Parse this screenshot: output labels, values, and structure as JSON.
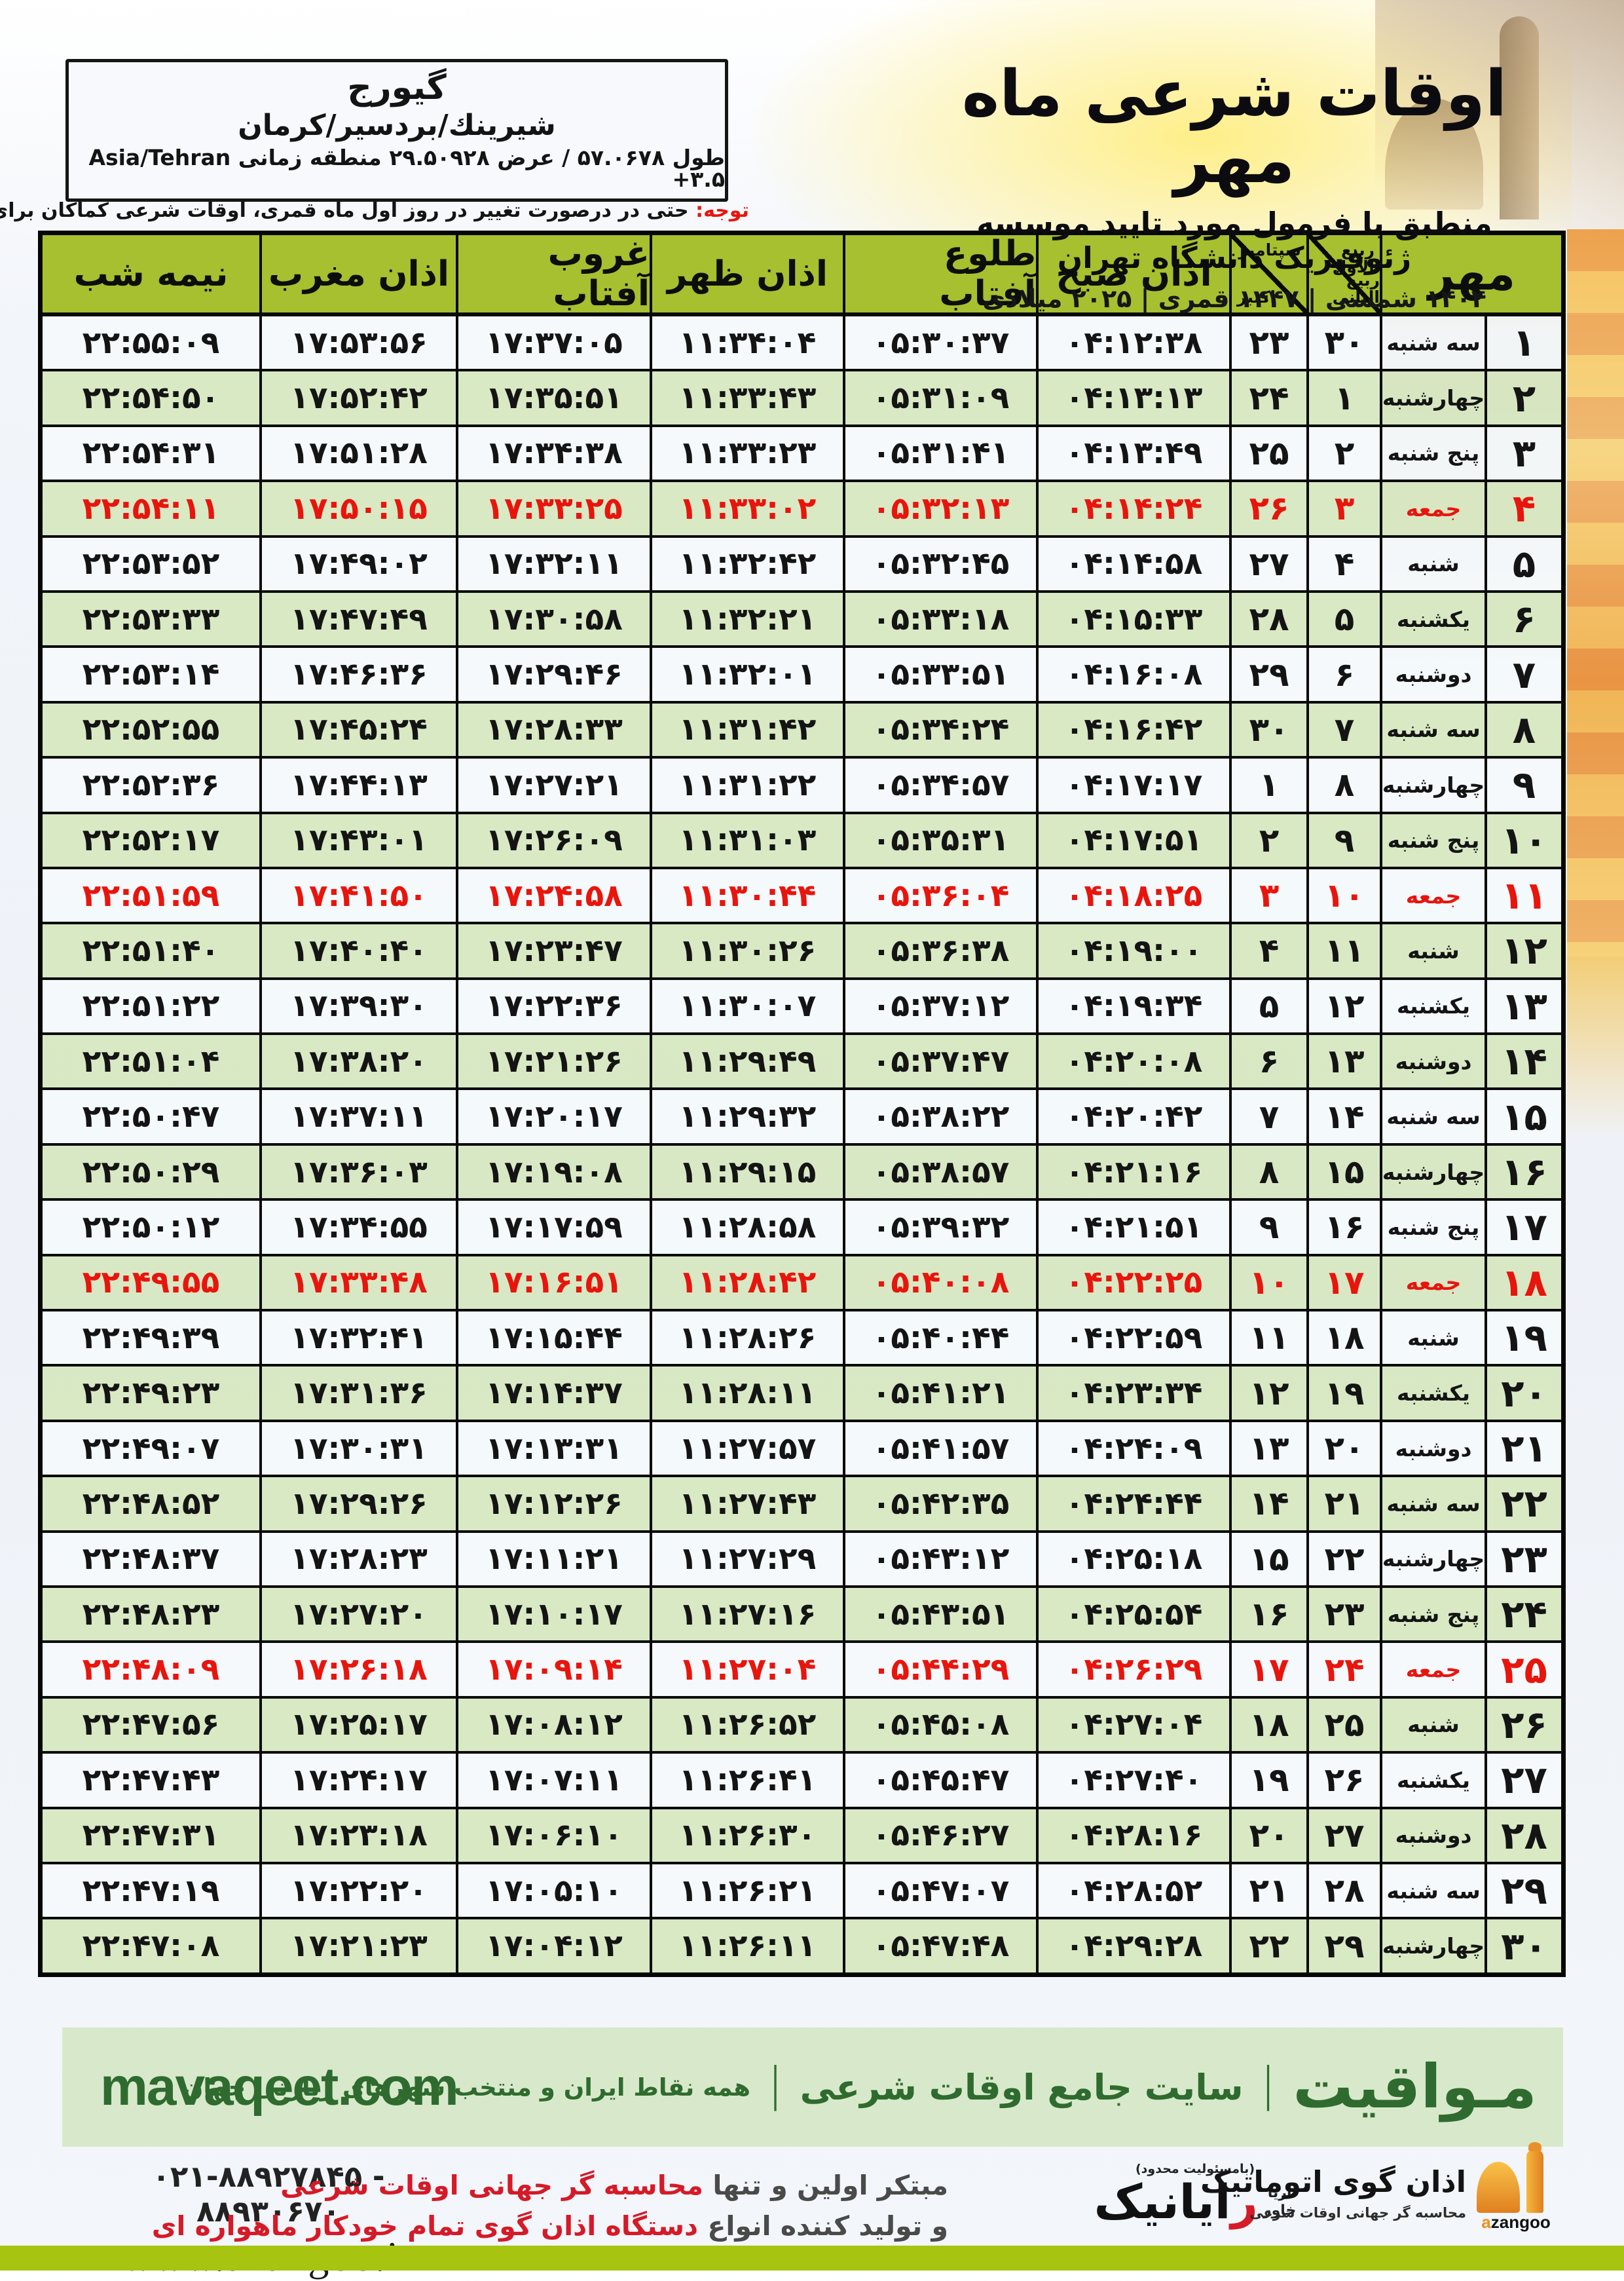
{
  "colors": {
    "header_green": "#a6c02f",
    "row_green": "#d6e7c0",
    "friday_red": "#e8150d",
    "footer_bg": "#d8e9cb",
    "footer_text": "#2f6b2f",
    "lime_bar": "#a6c410",
    "accent_orange": "#f0a93c"
  },
  "location_box": {
    "name": "گیورج",
    "region": "شیرینك/بردسیر/کرمان",
    "coords_fa": "طول ۵۷.۰۶۷۸ / عرض ۲۹.۵۰۹۲۸ منطقه زمانی",
    "timezone": "Asia/Tehran +۳.۵"
  },
  "title": {
    "main": "اوقات شرعی ماه مهر",
    "subtitle": "منطبق با فرمول مورد تایید موسسه ژئوفیزیک دانشگاه تهران",
    "era": "۱۴۰۴ شمسی | ۱۴۴۷ قمری | ۲۰۲۵ میلادی"
  },
  "note": {
    "label": "توجه:",
    "text": " حتی در درصورت تغییر در روز اول ماه قمری، اوقات شرعی کماکان برای روزهای شمسی و میلادی معتبر است."
  },
  "table": {
    "month": "مهر",
    "lunar_top": "ربیع الاول",
    "lunar_bottom": "ربیع الثانی",
    "greg_top": "سپتامبر",
    "greg_bottom": "اکتبر",
    "headers": {
      "fajr": "اذان صبح",
      "sunrise": "طلوع آفتاب",
      "dhuhr": "اذان ظهر",
      "sunset": "غروب آفتاب",
      "maghrib": "اذان مغرب",
      "midnight": "نیمه شب"
    },
    "rows": [
      {
        "d": "۱",
        "w": "سه شنبه",
        "l": "۳۰",
        "g": "۲۳",
        "fajr": "۰۴:۱۲:۳۸",
        "rise": "۰۵:۳۰:۳۷",
        "noon": "۱۱:۳۴:۰۴",
        "set": "۱۷:۳۷:۰۵",
        "mag": "۱۷:۵۳:۵۶",
        "mid": "۲۲:۵۵:۰۹",
        "fri": false
      },
      {
        "d": "۲",
        "w": "چهارشنبه",
        "l": "۱",
        "g": "۲۴",
        "fajr": "۰۴:۱۳:۱۳",
        "rise": "۰۵:۳۱:۰۹",
        "noon": "۱۱:۳۳:۴۳",
        "set": "۱۷:۳۵:۵۱",
        "mag": "۱۷:۵۲:۴۲",
        "mid": "۲۲:۵۴:۵۰",
        "fri": false
      },
      {
        "d": "۳",
        "w": "پنج شنبه",
        "l": "۲",
        "g": "۲۵",
        "fajr": "۰۴:۱۳:۴۹",
        "rise": "۰۵:۳۱:۴۱",
        "noon": "۱۱:۳۳:۲۳",
        "set": "۱۷:۳۴:۳۸",
        "mag": "۱۷:۵۱:۲۸",
        "mid": "۲۲:۵۴:۳۱",
        "fri": false
      },
      {
        "d": "۴",
        "w": "جمعه",
        "l": "۳",
        "g": "۲۶",
        "fajr": "۰۴:۱۴:۲۴",
        "rise": "۰۵:۳۲:۱۳",
        "noon": "۱۱:۳۳:۰۲",
        "set": "۱۷:۳۳:۲۵",
        "mag": "۱۷:۵۰:۱۵",
        "mid": "۲۲:۵۴:۱۱",
        "fri": true
      },
      {
        "d": "۵",
        "w": "شنبه",
        "l": "۴",
        "g": "۲۷",
        "fajr": "۰۴:۱۴:۵۸",
        "rise": "۰۵:۳۲:۴۵",
        "noon": "۱۱:۳۲:۴۲",
        "set": "۱۷:۳۲:۱۱",
        "mag": "۱۷:۴۹:۰۲",
        "mid": "۲۲:۵۳:۵۲",
        "fri": false
      },
      {
        "d": "۶",
        "w": "یکشنبه",
        "l": "۵",
        "g": "۲۸",
        "fajr": "۰۴:۱۵:۳۳",
        "rise": "۰۵:۳۳:۱۸",
        "noon": "۱۱:۳۲:۲۱",
        "set": "۱۷:۳۰:۵۸",
        "mag": "۱۷:۴۷:۴۹",
        "mid": "۲۲:۵۳:۳۳",
        "fri": false
      },
      {
        "d": "۷",
        "w": "دوشنبه",
        "l": "۶",
        "g": "۲۹",
        "fajr": "۰۴:۱۶:۰۸",
        "rise": "۰۵:۳۳:۵۱",
        "noon": "۱۱:۳۲:۰۱",
        "set": "۱۷:۲۹:۴۶",
        "mag": "۱۷:۴۶:۳۶",
        "mid": "۲۲:۵۳:۱۴",
        "fri": false
      },
      {
        "d": "۸",
        "w": "سه شنبه",
        "l": "۷",
        "g": "۳۰",
        "fajr": "۰۴:۱۶:۴۲",
        "rise": "۰۵:۳۴:۲۴",
        "noon": "۱۱:۳۱:۴۲",
        "set": "۱۷:۲۸:۳۳",
        "mag": "۱۷:۴۵:۲۴",
        "mid": "۲۲:۵۲:۵۵",
        "fri": false
      },
      {
        "d": "۹",
        "w": "چهارشنبه",
        "l": "۸",
        "g": "۱",
        "fajr": "۰۴:۱۷:۱۷",
        "rise": "۰۵:۳۴:۵۷",
        "noon": "۱۱:۳۱:۲۲",
        "set": "۱۷:۲۷:۲۱",
        "mag": "۱۷:۴۴:۱۳",
        "mid": "۲۲:۵۲:۳۶",
        "fri": false
      },
      {
        "d": "۱۰",
        "w": "پنج شنبه",
        "l": "۹",
        "g": "۲",
        "fajr": "۰۴:۱۷:۵۱",
        "rise": "۰۵:۳۵:۳۱",
        "noon": "۱۱:۳۱:۰۳",
        "set": "۱۷:۲۶:۰۹",
        "mag": "۱۷:۴۳:۰۱",
        "mid": "۲۲:۵۲:۱۷",
        "fri": false
      },
      {
        "d": "۱۱",
        "w": "جمعه",
        "l": "۱۰",
        "g": "۳",
        "fajr": "۰۴:۱۸:۲۵",
        "rise": "۰۵:۳۶:۰۴",
        "noon": "۱۱:۳۰:۴۴",
        "set": "۱۷:۲۴:۵۸",
        "mag": "۱۷:۴۱:۵۰",
        "mid": "۲۲:۵۱:۵۹",
        "fri": true
      },
      {
        "d": "۱۲",
        "w": "شنبه",
        "l": "۱۱",
        "g": "۴",
        "fajr": "۰۴:۱۹:۰۰",
        "rise": "۰۵:۳۶:۳۸",
        "noon": "۱۱:۳۰:۲۶",
        "set": "۱۷:۲۳:۴۷",
        "mag": "۱۷:۴۰:۴۰",
        "mid": "۲۲:۵۱:۴۰",
        "fri": false
      },
      {
        "d": "۱۳",
        "w": "یکشنبه",
        "l": "۱۲",
        "g": "۵",
        "fajr": "۰۴:۱۹:۳۴",
        "rise": "۰۵:۳۷:۱۲",
        "noon": "۱۱:۳۰:۰۷",
        "set": "۱۷:۲۲:۳۶",
        "mag": "۱۷:۳۹:۳۰",
        "mid": "۲۲:۵۱:۲۲",
        "fri": false
      },
      {
        "d": "۱۴",
        "w": "دوشنبه",
        "l": "۱۳",
        "g": "۶",
        "fajr": "۰۴:۲۰:۰۸",
        "rise": "۰۵:۳۷:۴۷",
        "noon": "۱۱:۲۹:۴۹",
        "set": "۱۷:۲۱:۲۶",
        "mag": "۱۷:۳۸:۲۰",
        "mid": "۲۲:۵۱:۰۴",
        "fri": false
      },
      {
        "d": "۱۵",
        "w": "سه شنبه",
        "l": "۱۴",
        "g": "۷",
        "fajr": "۰۴:۲۰:۴۲",
        "rise": "۰۵:۳۸:۲۲",
        "noon": "۱۱:۲۹:۳۲",
        "set": "۱۷:۲۰:۱۷",
        "mag": "۱۷:۳۷:۱۱",
        "mid": "۲۲:۵۰:۴۷",
        "fri": false
      },
      {
        "d": "۱۶",
        "w": "چهارشنبه",
        "l": "۱۵",
        "g": "۸",
        "fajr": "۰۴:۲۱:۱۶",
        "rise": "۰۵:۳۸:۵۷",
        "noon": "۱۱:۲۹:۱۵",
        "set": "۱۷:۱۹:۰۸",
        "mag": "۱۷:۳۶:۰۳",
        "mid": "۲۲:۵۰:۲۹",
        "fri": false
      },
      {
        "d": "۱۷",
        "w": "پنج شنبه",
        "l": "۱۶",
        "g": "۹",
        "fajr": "۰۴:۲۱:۵۱",
        "rise": "۰۵:۳۹:۳۲",
        "noon": "۱۱:۲۸:۵۸",
        "set": "۱۷:۱۷:۵۹",
        "mag": "۱۷:۳۴:۵۵",
        "mid": "۲۲:۵۰:۱۲",
        "fri": false
      },
      {
        "d": "۱۸",
        "w": "جمعه",
        "l": "۱۷",
        "g": "۱۰",
        "fajr": "۰۴:۲۲:۲۵",
        "rise": "۰۵:۴۰:۰۸",
        "noon": "۱۱:۲۸:۴۲",
        "set": "۱۷:۱۶:۵۱",
        "mag": "۱۷:۳۳:۴۸",
        "mid": "۲۲:۴۹:۵۵",
        "fri": true
      },
      {
        "d": "۱۹",
        "w": "شنبه",
        "l": "۱۸",
        "g": "۱۱",
        "fajr": "۰۴:۲۲:۵۹",
        "rise": "۰۵:۴۰:۴۴",
        "noon": "۱۱:۲۸:۲۶",
        "set": "۱۷:۱۵:۴۴",
        "mag": "۱۷:۳۲:۴۱",
        "mid": "۲۲:۴۹:۳۹",
        "fri": false
      },
      {
        "d": "۲۰",
        "w": "یکشنبه",
        "l": "۱۹",
        "g": "۱۲",
        "fajr": "۰۴:۲۳:۳۴",
        "rise": "۰۵:۴۱:۲۱",
        "noon": "۱۱:۲۸:۱۱",
        "set": "۱۷:۱۴:۳۷",
        "mag": "۱۷:۳۱:۳۶",
        "mid": "۲۲:۴۹:۲۳",
        "fri": false
      },
      {
        "d": "۲۱",
        "w": "دوشنبه",
        "l": "۲۰",
        "g": "۱۳",
        "fajr": "۰۴:۲۴:۰۹",
        "rise": "۰۵:۴۱:۵۷",
        "noon": "۱۱:۲۷:۵۷",
        "set": "۱۷:۱۳:۳۱",
        "mag": "۱۷:۳۰:۳۱",
        "mid": "۲۲:۴۹:۰۷",
        "fri": false
      },
      {
        "d": "۲۲",
        "w": "سه شنبه",
        "l": "۲۱",
        "g": "۱۴",
        "fajr": "۰۴:۲۴:۴۴",
        "rise": "۰۵:۴۲:۳۵",
        "noon": "۱۱:۲۷:۴۳",
        "set": "۱۷:۱۲:۲۶",
        "mag": "۱۷:۲۹:۲۶",
        "mid": "۲۲:۴۸:۵۲",
        "fri": false
      },
      {
        "d": "۲۳",
        "w": "چهارشنبه",
        "l": "۲۲",
        "g": "۱۵",
        "fajr": "۰۴:۲۵:۱۸",
        "rise": "۰۵:۴۳:۱۲",
        "noon": "۱۱:۲۷:۲۹",
        "set": "۱۷:۱۱:۲۱",
        "mag": "۱۷:۲۸:۲۳",
        "mid": "۲۲:۴۸:۳۷",
        "fri": false
      },
      {
        "d": "۲۴",
        "w": "پنج شنبه",
        "l": "۲۳",
        "g": "۱۶",
        "fajr": "۰۴:۲۵:۵۴",
        "rise": "۰۵:۴۳:۵۱",
        "noon": "۱۱:۲۷:۱۶",
        "set": "۱۷:۱۰:۱۷",
        "mag": "۱۷:۲۷:۲۰",
        "mid": "۲۲:۴۸:۲۳",
        "fri": false
      },
      {
        "d": "۲۵",
        "w": "جمعه",
        "l": "۲۴",
        "g": "۱۷",
        "fajr": "۰۴:۲۶:۲۹",
        "rise": "۰۵:۴۴:۲۹",
        "noon": "۱۱:۲۷:۰۴",
        "set": "۱۷:۰۹:۱۴",
        "mag": "۱۷:۲۶:۱۸",
        "mid": "۲۲:۴۸:۰۹",
        "fri": true
      },
      {
        "d": "۲۶",
        "w": "شنبه",
        "l": "۲۵",
        "g": "۱۸",
        "fajr": "۰۴:۲۷:۰۴",
        "rise": "۰۵:۴۵:۰۸",
        "noon": "۱۱:۲۶:۵۲",
        "set": "۱۷:۰۸:۱۲",
        "mag": "۱۷:۲۵:۱۷",
        "mid": "۲۲:۴۷:۵۶",
        "fri": false
      },
      {
        "d": "۲۷",
        "w": "یکشنبه",
        "l": "۲۶",
        "g": "۱۹",
        "fajr": "۰۴:۲۷:۴۰",
        "rise": "۰۵:۴۵:۴۷",
        "noon": "۱۱:۲۶:۴۱",
        "set": "۱۷:۰۷:۱۱",
        "mag": "۱۷:۲۴:۱۷",
        "mid": "۲۲:۴۷:۴۳",
        "fri": false
      },
      {
        "d": "۲۸",
        "w": "دوشنبه",
        "l": "۲۷",
        "g": "۲۰",
        "fajr": "۰۴:۲۸:۱۶",
        "rise": "۰۵:۴۶:۲۷",
        "noon": "۱۱:۲۶:۳۰",
        "set": "۱۷:۰۶:۱۰",
        "mag": "۱۷:۲۳:۱۸",
        "mid": "۲۲:۴۷:۳۱",
        "fri": false
      },
      {
        "d": "۲۹",
        "w": "سه شنبه",
        "l": "۲۸",
        "g": "۲۱",
        "fajr": "۰۴:۲۸:۵۲",
        "rise": "۰۵:۴۷:۰۷",
        "noon": "۱۱:۲۶:۲۱",
        "set": "۱۷:۰۵:۱۰",
        "mag": "۱۷:۲۲:۲۰",
        "mid": "۲۲:۴۷:۱۹",
        "fri": false
      },
      {
        "d": "۳۰",
        "w": "چهارشنبه",
        "l": "۲۹",
        "g": "۲۲",
        "fajr": "۰۴:۲۹:۲۸",
        "rise": "۰۵:۴۷:۴۸",
        "noon": "۱۱:۲۶:۱۱",
        "set": "۱۷:۰۴:۱۲",
        "mag": "۱۷:۲۱:۲۳",
        "mid": "۲۲:۴۷:۰۸",
        "fri": false
      }
    ]
  },
  "site_bar": {
    "url": "mavaqeet.com",
    "brand": "مـواقیت",
    "tagline1": "سایت جامع اوقات شرعی",
    "tagline2": "همه نقاط ایران و منتخب شهرهای زیارتی جهان",
    "separator": "|"
  },
  "contact": {
    "phone": "۰۲۱-۸۸۹۲۷۸۴۵ - ۸۸۹۳۰۶۷۰",
    "website": "www.azangoo.ir",
    "line1_dark": "مبتکر اولین و تنها ",
    "line1_red": "محاسبه گر جهانی اوقات شرعی",
    "line2_dark": "و تولید کننده انواع ",
    "line2_red": "دستگاه اذان گوی تمام خودکار ماهواره ای"
  },
  "rayanik_logo": {
    "note": "(بامسئولیت محدود)",
    "name_first": "ر",
    "name_rest": "ایانیک",
    "sub1": "آریا",
    "sub2": "خاور"
  },
  "azangoo_logo": {
    "title": "اذان گوی اتوماتیک",
    "subtitle": "محاسبه گر جهانی اوقات شرعی",
    "latin_a": "a",
    "latin_rest": "zangoo"
  }
}
